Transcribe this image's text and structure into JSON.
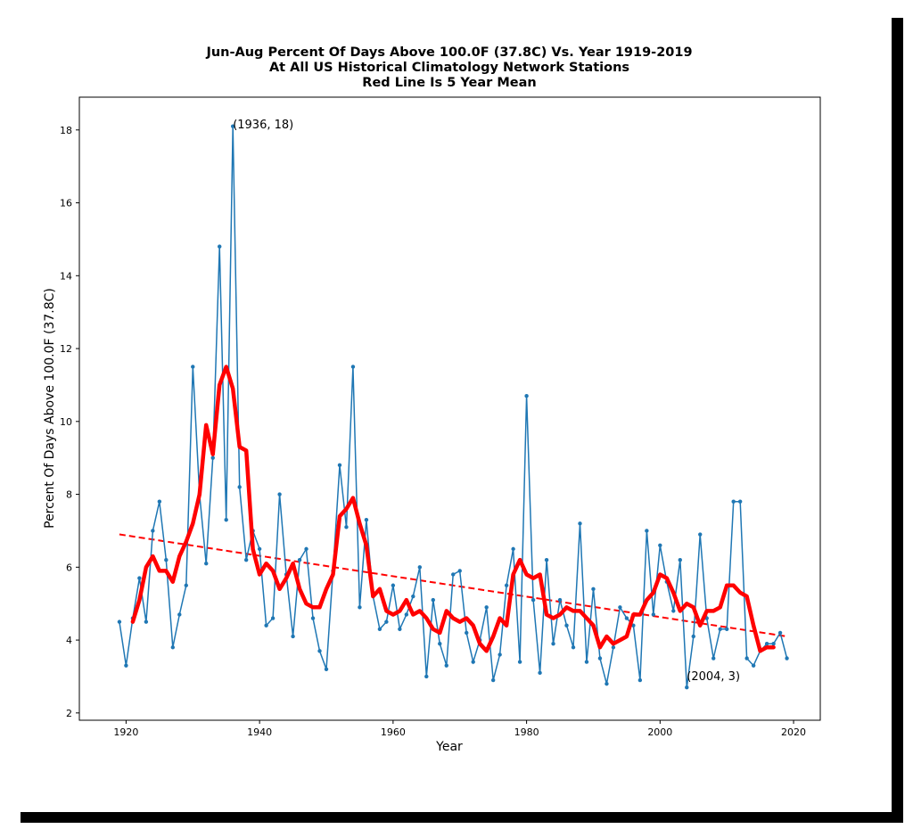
{
  "chart_data": {
    "type": "line",
    "title": [
      "Jun-Aug Percent Of Days Above 100.0F (37.8C) Vs. Year 1919-2019",
      "At All US Historical Climatology Network Stations",
      "Red Line Is 5 Year Mean"
    ],
    "xlabel": "Year",
    "ylabel": "Percent Of Days Above 100.0F (37.8C)",
    "xlim": [
      1913,
      2024
    ],
    "ylim": [
      1.8,
      18.9
    ],
    "xticks": [
      1920,
      1940,
      1960,
      1980,
      2000,
      2020
    ],
    "yticks": [
      2,
      4,
      6,
      8,
      10,
      12,
      14,
      16,
      18
    ],
    "grid": false,
    "colors": {
      "series": "#1f77b4",
      "mean": "#ff0000",
      "trend": "#ff0000"
    },
    "annotations": [
      {
        "text": "(1936, 18)",
        "x": 1936,
        "y": 18
      },
      {
        "text": "(2004, 3)",
        "x": 2004,
        "y": 3
      }
    ],
    "series": [
      {
        "style": "line-with-markers",
        "x": [
          1919,
          1920,
          1921,
          1922,
          1923,
          1924,
          1925,
          1926,
          1927,
          1928,
          1929,
          1930,
          1931,
          1932,
          1933,
          1934,
          1935,
          1936,
          1937,
          1938,
          1939,
          1940,
          1941,
          1942,
          1943,
          1944,
          1945,
          1946,
          1947,
          1948,
          1949,
          1950,
          1951,
          1952,
          1953,
          1954,
          1955,
          1956,
          1957,
          1958,
          1959,
          1960,
          1961,
          1962,
          1963,
          1964,
          1965,
          1966,
          1967,
          1968,
          1969,
          1970,
          1971,
          1972,
          1973,
          1974,
          1975,
          1976,
          1977,
          1978,
          1979,
          1980,
          1981,
          1982,
          1983,
          1984,
          1985,
          1986,
          1987,
          1988,
          1989,
          1990,
          1991,
          1992,
          1993,
          1994,
          1995,
          1996,
          1997,
          1998,
          1999,
          2000,
          2001,
          2002,
          2003,
          2004,
          2005,
          2006,
          2007,
          2008,
          2009,
          2010,
          2011,
          2012,
          2013,
          2014,
          2015,
          2016,
          2017,
          2018,
          2019
        ],
        "values": [
          4.5,
          3.3,
          4.6,
          5.7,
          4.5,
          7.0,
          7.8,
          6.2,
          3.8,
          4.7,
          5.5,
          11.5,
          8.0,
          6.1,
          9.0,
          14.8,
          7.3,
          18.1,
          8.2,
          6.2,
          7.0,
          6.5,
          4.4,
          4.6,
          8.0,
          5.8,
          4.1,
          6.2,
          6.5,
          4.6,
          3.7,
          3.2,
          5.9,
          8.8,
          7.1,
          11.5,
          4.9,
          7.3,
          5.2,
          4.3,
          4.5,
          5.5,
          4.3,
          4.7,
          5.2,
          6.0,
          3.0,
          5.1,
          3.9,
          3.3,
          5.8,
          5.9,
          4.2,
          3.4,
          4.0,
          4.9,
          2.9,
          3.6,
          5.5,
          6.5,
          3.4,
          10.7,
          5.1,
          3.1,
          6.2,
          3.9,
          5.1,
          4.4,
          3.8,
          7.2,
          3.4,
          5.4,
          3.5,
          2.8,
          3.8,
          4.9,
          4.6,
          4.4,
          2.9,
          7.0,
          4.7,
          6.6,
          5.6,
          4.8,
          6.2,
          2.7,
          4.1,
          6.9,
          4.6,
          3.5,
          4.3,
          4.3,
          7.8,
          7.8,
          3.5,
          3.3,
          3.7,
          3.9,
          3.9,
          4.2,
          3.5
        ]
      },
      {
        "style": "thick-line",
        "x": [
          1921,
          1922,
          1923,
          1924,
          1925,
          1926,
          1927,
          1928,
          1929,
          1930,
          1931,
          1932,
          1933,
          1934,
          1935,
          1936,
          1937,
          1938,
          1939,
          1940,
          1941,
          1942,
          1943,
          1944,
          1945,
          1946,
          1947,
          1948,
          1949,
          1950,
          1951,
          1952,
          1953,
          1954,
          1955,
          1956,
          1957,
          1958,
          1959,
          1960,
          1961,
          1962,
          1963,
          1964,
          1965,
          1966,
          1967,
          1968,
          1969,
          1970,
          1971,
          1972,
          1973,
          1974,
          1975,
          1976,
          1977,
          1978,
          1979,
          1980,
          1981,
          1982,
          1983,
          1984,
          1985,
          1986,
          1987,
          1988,
          1989,
          1990,
          1991,
          1992,
          1993,
          1994,
          1995,
          1996,
          1997,
          1998,
          1999,
          2000,
          2001,
          2002,
          2003,
          2004,
          2005,
          2006,
          2007,
          2008,
          2009,
          2010,
          2011,
          2012,
          2013,
          2014,
          2015,
          2016,
          2017
        ],
        "values": [
          4.5,
          5.1,
          6.0,
          6.3,
          5.9,
          5.9,
          5.6,
          6.3,
          6.7,
          7.2,
          8.0,
          9.9,
          9.1,
          11.0,
          11.5,
          10.9,
          9.3,
          9.2,
          6.5,
          5.8,
          6.1,
          5.9,
          5.4,
          5.7,
          6.1,
          5.4,
          5.0,
          4.9,
          4.9,
          5.4,
          5.8,
          7.4,
          7.6,
          7.9,
          7.2,
          6.6,
          5.2,
          5.4,
          4.8,
          4.7,
          4.8,
          5.1,
          4.7,
          4.8,
          4.6,
          4.3,
          4.2,
          4.8,
          4.6,
          4.5,
          4.6,
          4.4,
          3.9,
          3.7,
          4.1,
          4.6,
          4.4,
          5.8,
          6.2,
          5.8,
          5.7,
          5.8,
          4.7,
          4.6,
          4.7,
          4.9,
          4.8,
          4.8,
          4.6,
          4.4,
          3.8,
          4.1,
          3.9,
          4.0,
          4.1,
          4.7,
          4.7,
          5.1,
          5.3,
          5.8,
          5.7,
          5.3,
          4.8,
          5.0,
          4.9,
          4.4,
          4.8,
          4.8,
          4.9,
          5.5,
          5.5,
          5.3,
          5.2,
          4.4,
          3.7,
          3.8,
          3.8
        ]
      },
      {
        "style": "dashed",
        "x": [
          1919,
          2019
        ],
        "values": [
          6.9,
          4.1
        ]
      }
    ]
  }
}
